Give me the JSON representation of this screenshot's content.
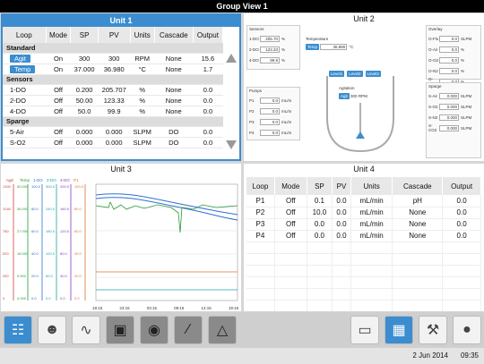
{
  "window": {
    "title": "Group View 1"
  },
  "unit1": {
    "title": "Unit 1",
    "headers": [
      "Loop",
      "Mode",
      "SP",
      "PV",
      "Units",
      "Cascade",
      "Output"
    ],
    "groups": [
      {
        "name": "Standard",
        "rows": [
          [
            "Agit",
            "On",
            "300",
            "300",
            "RPM",
            "None",
            "15.6"
          ],
          [
            "Temp",
            "On",
            "37.000",
            "36.980",
            "°C",
            "None",
            "1.7"
          ]
        ]
      },
      {
        "name": "Sensors",
        "rows": [
          [
            "1-DO",
            "Off",
            "0.200",
            "205.707",
            "%",
            "None",
            "0.0"
          ],
          [
            "2-DO",
            "Off",
            "50.00",
            "123.33",
            "%",
            "None",
            "0.0"
          ],
          [
            "4-DO",
            "Off",
            "50.0",
            "99.9",
            "%",
            "None",
            "0.0"
          ]
        ]
      },
      {
        "name": "Sparge",
        "rows": [
          [
            "5-Air",
            "Off",
            "0.000",
            "0.000",
            "SLPM",
            "DO",
            "0.0"
          ],
          [
            "S-O2",
            "Off",
            "0.000",
            "0.000",
            "SLPM",
            "DO",
            "0.0"
          ]
        ]
      }
    ]
  },
  "unit2": {
    "title": "Unit 2",
    "sensors": {
      "title": "Sensors",
      "rows": [
        [
          "1-DO",
          "205.70",
          "%"
        ],
        [
          "2-DO",
          "123.33",
          "%"
        ],
        [
          "4-DO",
          "99.9",
          "%"
        ]
      ]
    },
    "temperature": {
      "title": "Temperature",
      "btn": "Temp",
      "value": "36.980",
      "unit": "°C"
    },
    "pumps": {
      "title": "Pumps",
      "rows": [
        [
          "P1",
          "0.0",
          "mL/m"
        ],
        [
          "P2",
          "0.0",
          "mL/m"
        ],
        [
          "P3",
          "0.0",
          "mL/m"
        ],
        [
          "P4",
          "0.0",
          "mL/m"
        ]
      ]
    },
    "levels": [
      "Level1",
      "Level2",
      "Level3"
    ],
    "agitation": {
      "title": "Agitation",
      "btn": "Agit",
      "value": "300",
      "unit": "RPM"
    },
    "overlay": {
      "title": "Overlay",
      "rows": [
        [
          "O-Flo",
          "0.0",
          "SLPM"
        ],
        [
          "O-Air",
          "0.0",
          "%"
        ],
        [
          "O-O2",
          "0.0",
          "%"
        ],
        [
          "O-N2",
          "0.0",
          "%"
        ],
        [
          "O-CO2",
          "0.0",
          "%"
        ]
      ]
    },
    "sparge": {
      "title": "Sparge",
      "rows": [
        [
          "S-Air",
          "0.000",
          "SLPM"
        ],
        [
          "S-O2",
          "0.000",
          "SLPM"
        ],
        [
          "S-N2",
          "0.000",
          "SLPM"
        ],
        [
          "S-CO2",
          "0.000",
          "SLPM"
        ]
      ]
    }
  },
  "unit3": {
    "title": "Unit 3",
    "legend": [
      "Agit",
      "Temp",
      "1-DO",
      "2-DO",
      "4-DO",
      "P1"
    ],
    "legend_colors": [
      "#d04040",
      "#2a9a3a",
      "#2f6fd0",
      "#20a0a0",
      "#8040c0",
      "#e07030"
    ],
    "axes": [
      [
        "1300",
        "1040",
        "780",
        "520",
        "260",
        "0"
      ],
      [
        "50.000",
        "36.000",
        "27.000",
        "18.000",
        "9.000",
        "0.000"
      ],
      [
        "100.0",
        "80.0",
        "60.0",
        "40.0",
        "20.0",
        "0.0"
      ],
      [
        "300.0",
        "240.0",
        "180.0",
        "120.0",
        "60.0",
        "0.0"
      ],
      [
        "200.0",
        "160.0",
        "120.0",
        "80.0",
        "40.0",
        "0.0"
      ],
      [
        "100.0",
        "80.0",
        "60.0",
        "40.0",
        "20.0",
        "0.0"
      ]
    ],
    "xticks": [
      "19:15",
      "23:15",
      "03:15",
      "09:15",
      "14:15",
      "19:15"
    ]
  },
  "unit4": {
    "title": "Unit 4",
    "headers": [
      "Loop",
      "Mode",
      "SP",
      "PV",
      "Units",
      "Cascade",
      "Output"
    ],
    "rows": [
      [
        "P1",
        "Off",
        "0.1",
        "0.0",
        "mL/min",
        "pH",
        "0.0"
      ],
      [
        "P2",
        "Off",
        "10.0",
        "0.0",
        "mL/min",
        "None",
        "0.0"
      ],
      [
        "P3",
        "Off",
        "0.0",
        "0.0",
        "mL/min",
        "None",
        "0.0"
      ],
      [
        "P4",
        "Off",
        "0.0",
        "0.0",
        "mL/min",
        "None",
        "0.0"
      ]
    ]
  },
  "toolbar": {
    "items": [
      "clipboard-icon",
      "beaker-icon",
      "trend-icon",
      "network-icon",
      "pump-icon",
      "gauge-icon",
      "bell-icon",
      "single-view-icon",
      "group-view-icon",
      "wrench-icon",
      "user-icon"
    ]
  },
  "status": {
    "date": "2 Jun 2014",
    "time": "09:35"
  },
  "colors": {
    "accent": "#3b8dd0"
  }
}
